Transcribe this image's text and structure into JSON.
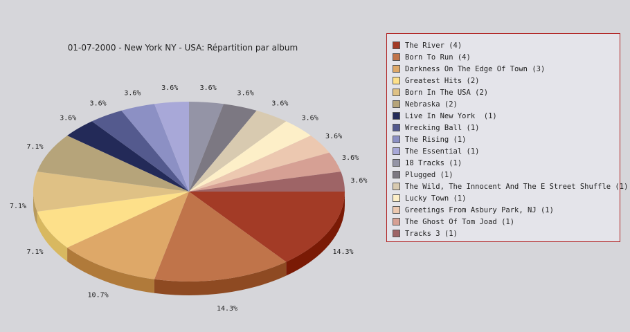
{
  "chart_data": {
    "type": "pie",
    "title": "01-07-2000 - New York NY - USA:  Répartition par album",
    "slices": [
      {
        "label": "The River (4)",
        "value": 4,
        "percent_label": "14.3%",
        "color": "#a33b26",
        "side": "#7a1a05"
      },
      {
        "label": "Born To Run (4)",
        "value": 4,
        "percent_label": "14.3%",
        "color": "#c0744a",
        "side": "#8e4a22"
      },
      {
        "label": "Darkness On The Edge Of Town (3)",
        "value": 3,
        "percent_label": "10.7%",
        "color": "#dea868",
        "side": "#b07a3a"
      },
      {
        "label": "Greatest Hits (2)",
        "value": 2,
        "percent_label": "7.1%",
        "color": "#fde08a",
        "side": "#d8b860"
      },
      {
        "label": "Born In The USA (2)",
        "value": 2,
        "percent_label": "7.1%",
        "color": "#dfc185",
        "side": "#b89a5c"
      },
      {
        "label": "Nebraska (2)",
        "value": 2,
        "percent_label": "7.1%",
        "color": "#b6a47a",
        "side": "#8e7c54"
      },
      {
        "label": "Live In New York  (1)",
        "value": 1,
        "percent_label": "3.6%",
        "color": "#232a58",
        "side": "#151a3a"
      },
      {
        "label": "Wrecking Ball (1)",
        "value": 1,
        "percent_label": "3.6%",
        "color": "#545a8e",
        "side": "#3a3f6a"
      },
      {
        "label": "The Rising (1)",
        "value": 1,
        "percent_label": "3.6%",
        "color": "#8c90c4",
        "side": "#6a6e9e"
      },
      {
        "label": "The Essential (1)",
        "value": 1,
        "percent_label": "3.6%",
        "color": "#a8a8d8",
        "side": "#8484b0"
      },
      {
        "label": "18 Tracks (1)",
        "value": 1,
        "percent_label": "3.6%",
        "color": "#9494a6",
        "side": "#727282"
      },
      {
        "label": "Plugged (1)",
        "value": 1,
        "percent_label": "3.6%",
        "color": "#7c7882",
        "side": "#5c5862"
      },
      {
        "label": "The Wild, The Innocent And The E Street Shuffle (1)",
        "value": 1,
        "percent_label": "3.6%",
        "color": "#d8cab0",
        "side": "#b0a488"
      },
      {
        "label": "Lucky Town (1)",
        "value": 1,
        "percent_label": "3.6%",
        "color": "#fdefc8",
        "side": "#d6c8a0"
      },
      {
        "label": "Greetings From Asbury Park, NJ (1)",
        "value": 1,
        "percent_label": "3.6%",
        "color": "#ecc8b0",
        "side": "#c4a088"
      },
      {
        "label": "The Ghost Of Tom Joad (1)",
        "value": 1,
        "percent_label": "3.6%",
        "color": "#d6a094",
        "side": "#ae786c"
      },
      {
        "label": "Tracks 3 (1)",
        "value": 1,
        "percent_label": "3.6%",
        "color": "#9e6466",
        "side": "#764244"
      }
    ]
  }
}
